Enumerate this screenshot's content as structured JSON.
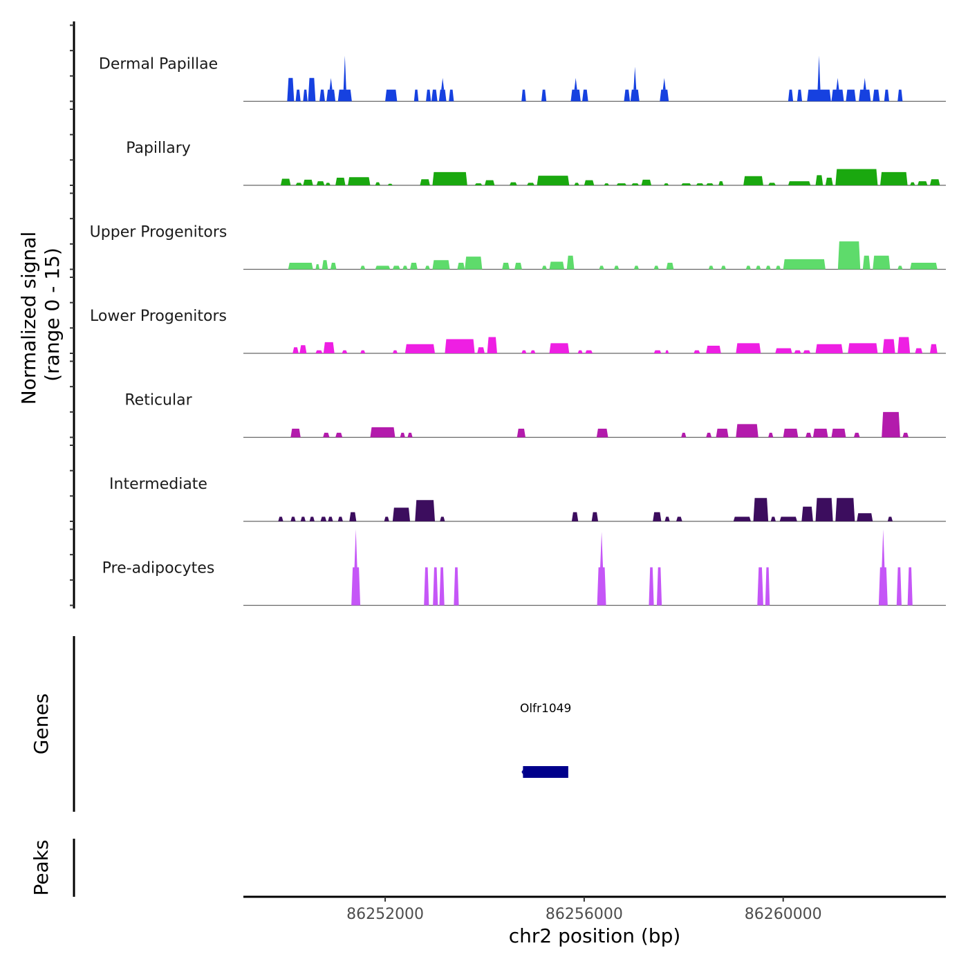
{
  "chart_data": {
    "type": "area",
    "title": "",
    "ylabel": [
      "Normalized signal",
      "(range 0 - 15)"
    ],
    "xlabel": "chr2 position (bp)",
    "ylim": [
      0,
      15
    ],
    "xlim": [
      86249150,
      86263270
    ],
    "x_ticks": [
      86252000,
      86256000,
      86260000
    ],
    "x_tick_labels": [
      "86252000",
      "86256000",
      "86260000"
    ],
    "tracks": [
      {
        "name": "Dermal Papillae",
        "color": "#1641e0",
        "peaks": [
          [
            86250030,
            86250170,
            4.6
          ],
          [
            86250200,
            86250300,
            2.3
          ],
          [
            86250350,
            86250440,
            2.3
          ],
          [
            86250450,
            86250600,
            4.6
          ],
          [
            86250680,
            86250790,
            2.3
          ],
          [
            86250820,
            86251000,
            2.3,
            4.6
          ],
          [
            86251050,
            86251330,
            2.3,
            9.0
          ],
          [
            86252000,
            86252240,
            2.3
          ],
          [
            86252580,
            86252670,
            2.3
          ],
          [
            86252820,
            86252920,
            2.3
          ],
          [
            86252930,
            86253050,
            2.3
          ],
          [
            86253080,
            86253230,
            2.3,
            4.6
          ],
          [
            86253280,
            86253380,
            2.3
          ],
          [
            86254740,
            86254830,
            2.3
          ],
          [
            86255140,
            86255240,
            2.3
          ],
          [
            86255730,
            86255930,
            2.3,
            4.6
          ],
          [
            86255960,
            86256080,
            2.3
          ],
          [
            86256800,
            86256920,
            2.3
          ],
          [
            86256930,
            86257110,
            2.3,
            6.8
          ],
          [
            86257520,
            86257700,
            2.3,
            4.6
          ],
          [
            86260100,
            86260200,
            2.3
          ],
          [
            86260280,
            86260380,
            2.3
          ],
          [
            86260480,
            86260960,
            2.3,
            9.0
          ],
          [
            86260970,
            86261220,
            2.3,
            4.6
          ],
          [
            86261260,
            86261460,
            2.3
          ],
          [
            86261520,
            86261760,
            2.3,
            4.6
          ],
          [
            86261800,
            86261940,
            2.3
          ],
          [
            86262030,
            86262130,
            2.3
          ],
          [
            86262300,
            86262400,
            2.3
          ]
        ]
      },
      {
        "name": "Papillary",
        "color": "#1aa80f",
        "peaks": [
          [
            86249900,
            86250100,
            1.3
          ],
          [
            86250200,
            86250330,
            0.5
          ],
          [
            86250350,
            86250550,
            1.1
          ],
          [
            86250620,
            86250780,
            0.8
          ],
          [
            86250800,
            86250900,
            0.5
          ],
          [
            86251000,
            86251200,
            1.5
          ],
          [
            86251250,
            86251700,
            1.6
          ],
          [
            86251800,
            86251900,
            0.6
          ],
          [
            86252050,
            86252150,
            0.3
          ],
          [
            86252700,
            86252900,
            1.2
          ],
          [
            86252950,
            86253650,
            2.6
          ],
          [
            86253800,
            86253950,
            0.4
          ],
          [
            86254000,
            86254200,
            1.0
          ],
          [
            86254500,
            86254650,
            0.6
          ],
          [
            86254850,
            86255000,
            0.5
          ],
          [
            86255050,
            86255700,
            1.9
          ],
          [
            86255800,
            86255900,
            0.5
          ],
          [
            86256000,
            86256200,
            1.0
          ],
          [
            86256400,
            86256500,
            0.4
          ],
          [
            86256650,
            86256850,
            0.4
          ],
          [
            86256950,
            86257100,
            0.4
          ],
          [
            86257150,
            86257350,
            1.1
          ],
          [
            86257600,
            86257700,
            0.4
          ],
          [
            86257950,
            86258150,
            0.4
          ],
          [
            86258250,
            86258400,
            0.4
          ],
          [
            86258450,
            86258600,
            0.4
          ],
          [
            86258700,
            86258800,
            0.8
          ],
          [
            86259200,
            86259600,
            1.8
          ],
          [
            86259700,
            86259850,
            0.5
          ],
          [
            86260100,
            86260550,
            0.8
          ],
          [
            86260650,
            86260800,
            2.0
          ],
          [
            86260850,
            86261000,
            1.5
          ],
          [
            86261050,
            86261900,
            3.2
          ],
          [
            86261950,
            86262500,
            2.6
          ],
          [
            86262550,
            86262650,
            0.6
          ],
          [
            86262700,
            86262900,
            0.8
          ],
          [
            86262950,
            86263150,
            1.2
          ]
        ]
      },
      {
        "name": "Upper Progenitors",
        "color": "#5edb6b",
        "peaks": [
          [
            86250050,
            86250550,
            1.3
          ],
          [
            86250600,
            86250680,
            1.0
          ],
          [
            86250730,
            86250850,
            1.8
          ],
          [
            86250900,
            86251020,
            1.3
          ],
          [
            86251500,
            86251600,
            0.7
          ],
          [
            86251800,
            86252100,
            0.7
          ],
          [
            86252150,
            86252300,
            0.7
          ],
          [
            86252350,
            86252450,
            0.7
          ],
          [
            86252500,
            86252650,
            1.3
          ],
          [
            86252800,
            86252900,
            0.7
          ],
          [
            86252950,
            86253300,
            1.8
          ],
          [
            86253450,
            86253600,
            1.3
          ],
          [
            86253600,
            86253950,
            2.5
          ],
          [
            86254350,
            86254500,
            1.3
          ],
          [
            86254600,
            86254750,
            1.3
          ],
          [
            86255150,
            86255250,
            0.7
          ],
          [
            86255300,
            86255600,
            1.5
          ],
          [
            86255650,
            86255800,
            2.7
          ],
          [
            86256300,
            86256400,
            0.7
          ],
          [
            86256600,
            86256700,
            0.7
          ],
          [
            86257000,
            86257100,
            0.7
          ],
          [
            86257400,
            86257500,
            0.7
          ],
          [
            86257650,
            86257800,
            1.3
          ],
          [
            86258500,
            86258600,
            0.7
          ],
          [
            86258750,
            86258850,
            0.7
          ],
          [
            86259250,
            86259350,
            0.7
          ],
          [
            86259450,
            86259550,
            0.7
          ],
          [
            86259650,
            86259750,
            0.7
          ],
          [
            86259850,
            86259950,
            0.7
          ],
          [
            86260000,
            86260850,
            2.0
          ],
          [
            86261100,
            86261550,
            5.5
          ],
          [
            86261600,
            86261750,
            2.7
          ],
          [
            86261800,
            86262150,
            2.7
          ],
          [
            86262300,
            86262400,
            0.7
          ],
          [
            86262550,
            86263100,
            1.3
          ]
        ]
      },
      {
        "name": "Lower Progenitors",
        "color": "#ee1fe3",
        "peaks": [
          [
            86250140,
            86250260,
            1.2
          ],
          [
            86250280,
            86250420,
            1.6
          ],
          [
            86250600,
            86250740,
            0.6
          ],
          [
            86250760,
            86250980,
            2.2
          ],
          [
            86251130,
            86251240,
            0.6
          ],
          [
            86251500,
            86251600,
            0.6
          ],
          [
            86252150,
            86252250,
            0.6
          ],
          [
            86252400,
            86253000,
            1.8
          ],
          [
            86253200,
            86253800,
            2.8
          ],
          [
            86253850,
            86254000,
            1.2
          ],
          [
            86254050,
            86254250,
            3.2
          ],
          [
            86254740,
            86254840,
            0.6
          ],
          [
            86254920,
            86255020,
            0.6
          ],
          [
            86255300,
            86255700,
            2.0
          ],
          [
            86255870,
            86255970,
            0.6
          ],
          [
            86256020,
            86256170,
            0.6
          ],
          [
            86257400,
            86257550,
            0.6
          ],
          [
            86257630,
            86257700,
            0.6
          ],
          [
            86258200,
            86258330,
            0.6
          ],
          [
            86258450,
            86258750,
            1.5
          ],
          [
            86259050,
            86259550,
            2.0
          ],
          [
            86259840,
            86260180,
            1.0
          ],
          [
            86260220,
            86260360,
            0.6
          ],
          [
            86260400,
            86260550,
            0.6
          ],
          [
            86260650,
            86261200,
            1.8
          ],
          [
            86261300,
            86261900,
            2.0
          ],
          [
            86262000,
            86262250,
            2.8
          ],
          [
            86262300,
            86262550,
            3.2
          ],
          [
            86262650,
            86262800,
            1.0
          ],
          [
            86262950,
            86263100,
            1.8
          ]
        ]
      },
      {
        "name": "Reticular",
        "color": "#b31bac",
        "peaks": [
          [
            86250100,
            86250300,
            1.7
          ],
          [
            86250750,
            86250880,
            0.9
          ],
          [
            86251000,
            86251140,
            0.9
          ],
          [
            86251700,
            86252200,
            2.0
          ],
          [
            86252300,
            86252400,
            0.9
          ],
          [
            86252450,
            86252550,
            0.9
          ],
          [
            86254650,
            86254820,
            1.7
          ],
          [
            86256250,
            86256480,
            1.7
          ],
          [
            86257950,
            86258050,
            0.9
          ],
          [
            86258450,
            86258560,
            0.9
          ],
          [
            86258650,
            86258900,
            1.7
          ],
          [
            86259050,
            86259500,
            2.6
          ],
          [
            86259700,
            86259800,
            0.9
          ],
          [
            86260000,
            86260300,
            1.7
          ],
          [
            86260450,
            86260570,
            0.9
          ],
          [
            86260600,
            86260900,
            1.7
          ],
          [
            86260970,
            86261260,
            1.7
          ],
          [
            86261420,
            86261540,
            0.9
          ],
          [
            86261980,
            86262350,
            5.0
          ],
          [
            86262400,
            86262520,
            0.9
          ]
        ]
      },
      {
        "name": "Intermediate",
        "color": "#3c0d5e",
        "peaks": [
          [
            86249850,
            86249950,
            0.9
          ],
          [
            86250100,
            86250200,
            0.9
          ],
          [
            86250300,
            86250400,
            0.9
          ],
          [
            86250480,
            86250580,
            0.9
          ],
          [
            86250700,
            86250820,
            0.9
          ],
          [
            86250850,
            86250950,
            0.9
          ],
          [
            86251050,
            86251150,
            0.9
          ],
          [
            86251280,
            86251420,
            1.8
          ],
          [
            86251980,
            86252080,
            0.9
          ],
          [
            86252150,
            86252500,
            2.7
          ],
          [
            86252600,
            86253000,
            4.2
          ],
          [
            86253100,
            86253200,
            0.9
          ],
          [
            86255750,
            86255880,
            1.8
          ],
          [
            86256150,
            86256280,
            1.8
          ],
          [
            86257380,
            86257550,
            1.8
          ],
          [
            86257620,
            86257720,
            0.9
          ],
          [
            86257850,
            86257970,
            0.9
          ],
          [
            86259000,
            86259350,
            0.9
          ],
          [
            86259400,
            86259700,
            4.6
          ],
          [
            86259750,
            86259850,
            0.9
          ],
          [
            86259930,
            86260280,
            0.9
          ],
          [
            86260370,
            86260600,
            2.9
          ],
          [
            86260650,
            86261000,
            4.6
          ],
          [
            86261050,
            86261440,
            4.6
          ],
          [
            86261480,
            86261800,
            1.6
          ],
          [
            86262100,
            86262200,
            0.9
          ]
        ]
      },
      {
        "name": "Pre-adipocytes",
        "color": "#c556f7",
        "peaks": [
          [
            86251320,
            86251500,
            7.5,
            15.0
          ],
          [
            86252780,
            86252880,
            7.5
          ],
          [
            86252960,
            86253060,
            7.5
          ],
          [
            86253090,
            86253190,
            7.5
          ],
          [
            86253380,
            86253480,
            7.5
          ],
          [
            86256260,
            86256440,
            7.5,
            14.5
          ],
          [
            86257300,
            86257400,
            7.5
          ],
          [
            86257460,
            86257560,
            7.5
          ],
          [
            86259480,
            86259600,
            7.5
          ],
          [
            86259640,
            86259730,
            7.5
          ],
          [
            86261920,
            86262100,
            7.5,
            15.0
          ],
          [
            86262280,
            86262380,
            7.5
          ],
          [
            86262500,
            86262600,
            7.5
          ]
        ]
      }
    ],
    "genes": {
      "label": "Genes",
      "items": [
        {
          "name": "Olfr1049",
          "start": 86254770,
          "end": 86255680,
          "strand": "-",
          "color": "#00008b"
        }
      ]
    },
    "peaks_track": {
      "label": "Peaks",
      "items": []
    }
  }
}
